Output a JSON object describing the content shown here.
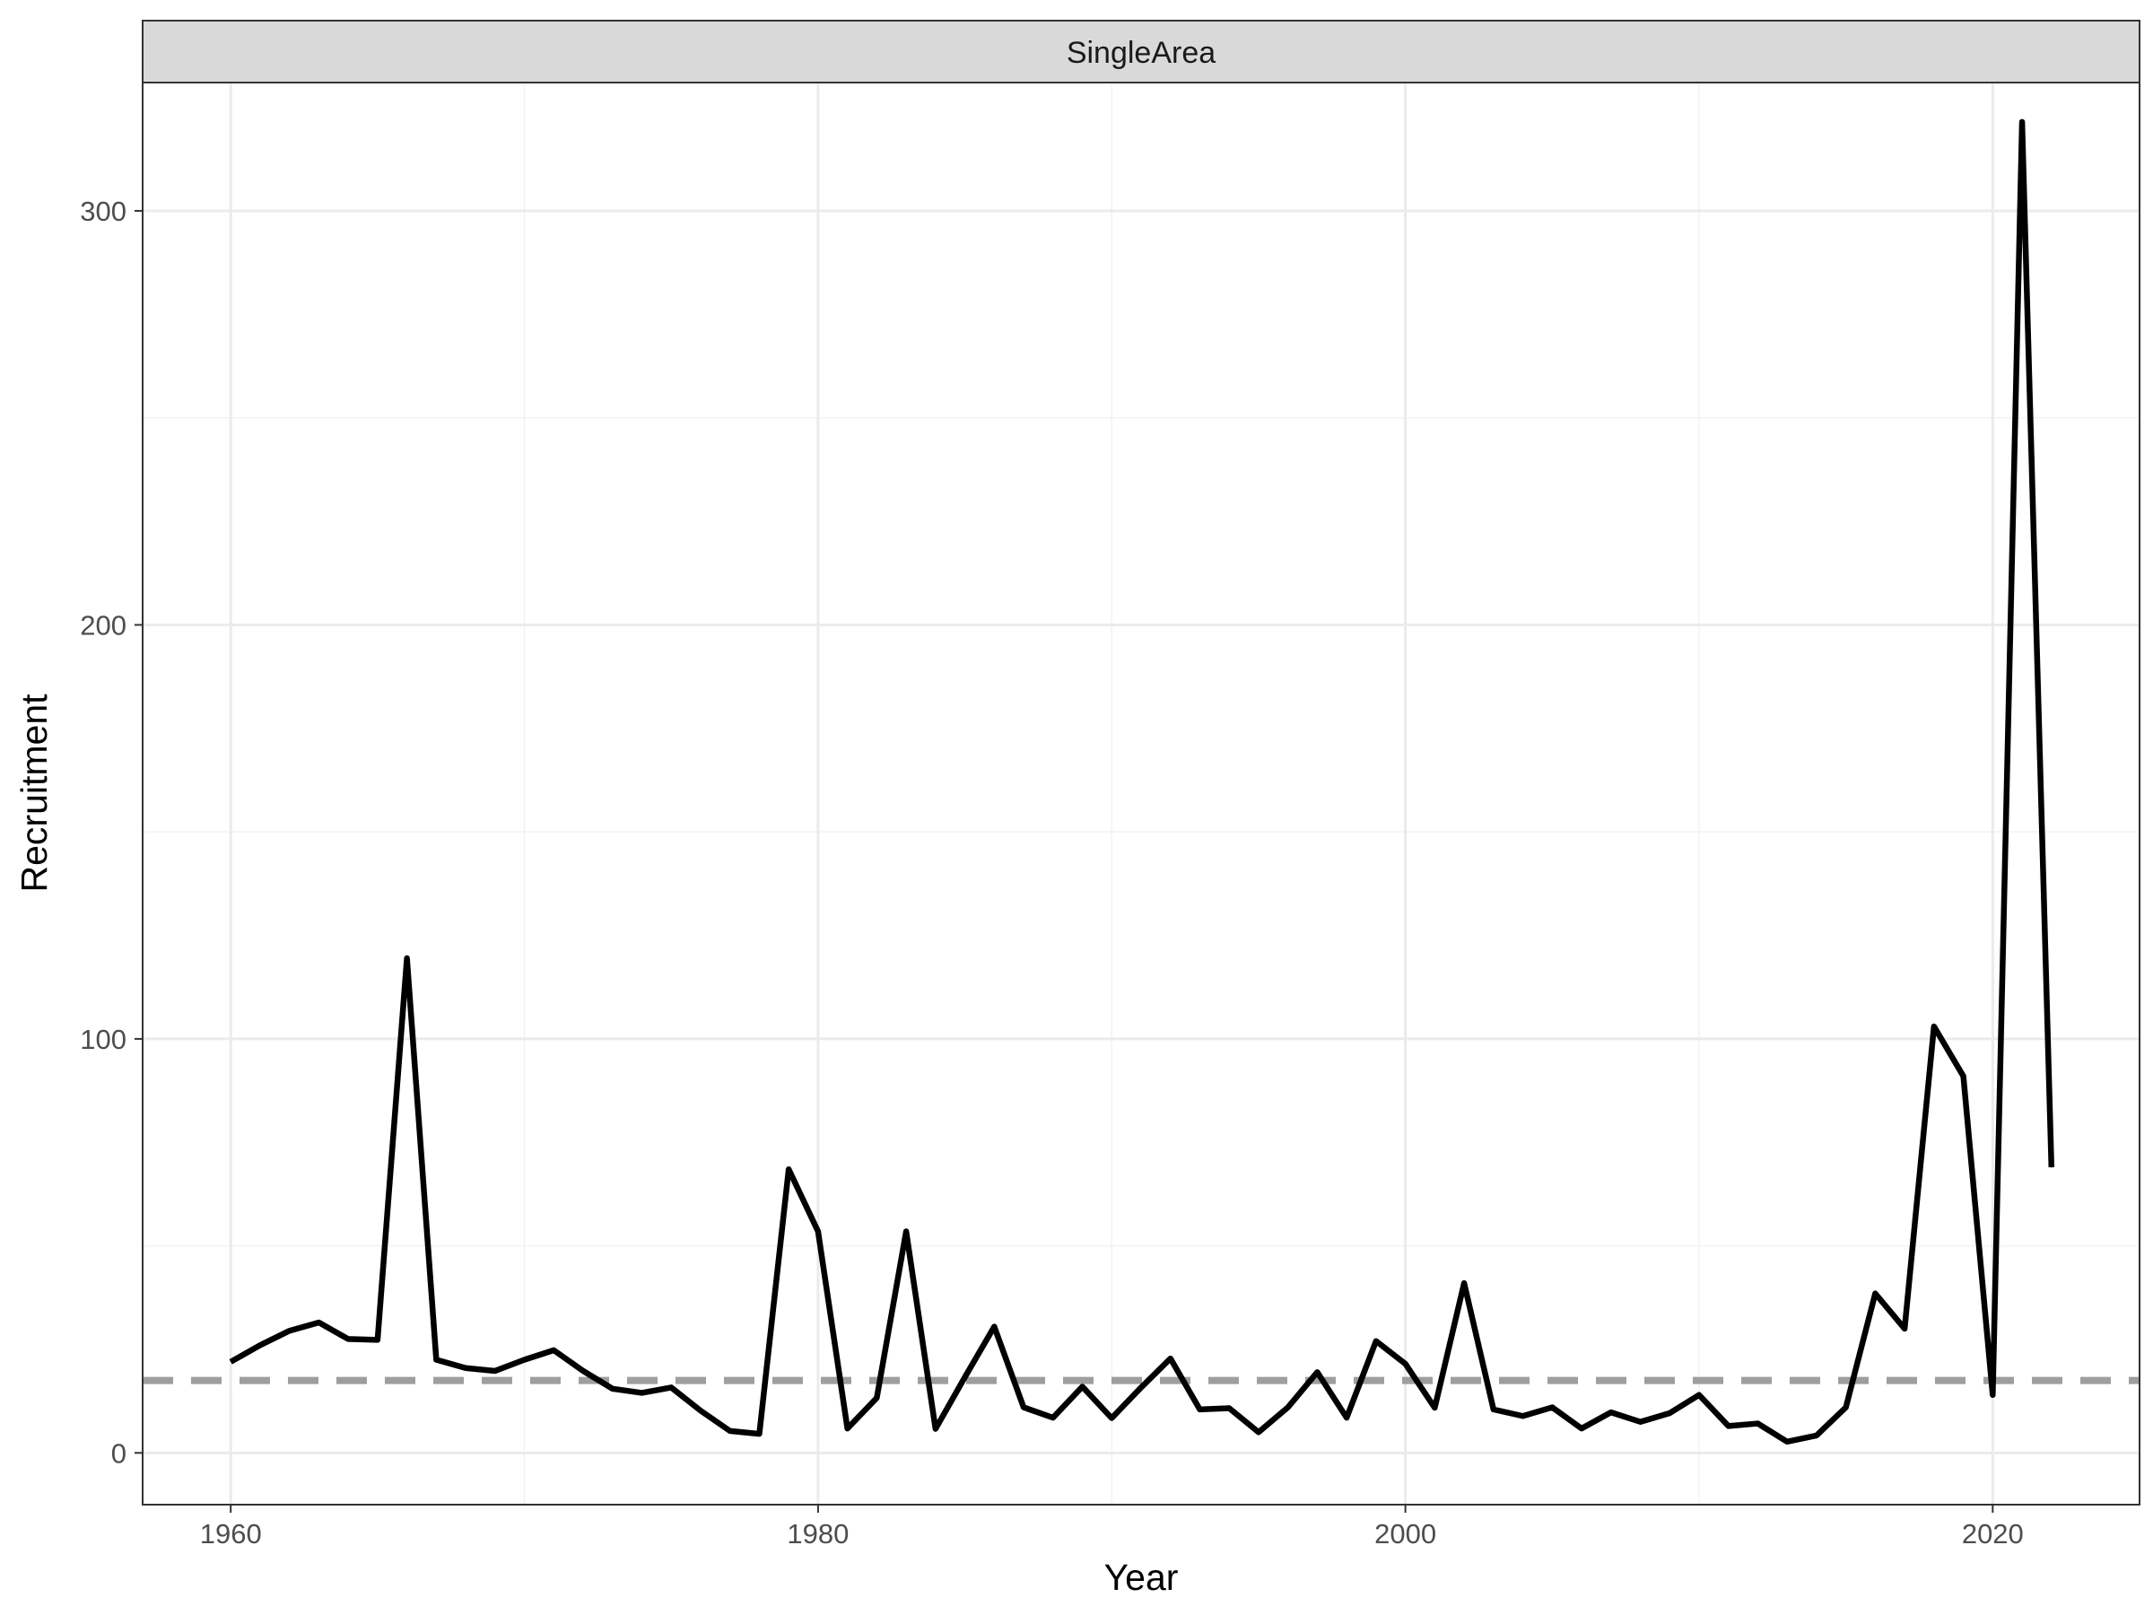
{
  "chart_data": {
    "type": "line",
    "facet_label": "SingleArea",
    "xlabel": "Year",
    "ylabel": "Recruitment",
    "xlim": [
      1957,
      2025
    ],
    "ylim": [
      -12.5,
      331
    ],
    "x_ticks": [
      1960,
      1980,
      2000,
      2020
    ],
    "x_tick_labels": [
      "1960",
      "1980",
      "2000",
      "2020"
    ],
    "y_ticks": [
      0,
      100,
      200,
      300
    ],
    "y_tick_labels": [
      "0",
      "100",
      "200",
      "300"
    ],
    "grid": true,
    "series": [
      {
        "color": "#000000",
        "style": "solid",
        "x": [
          1960,
          1961,
          1962,
          1963,
          1964,
          1965,
          1966,
          1967,
          1968,
          1969,
          1970,
          1971,
          1972,
          1973,
          1974,
          1975,
          1976,
          1977,
          1978,
          1979,
          1980,
          1981,
          1982,
          1983,
          1984,
          1985,
          1986,
          1987,
          1988,
          1989,
          1990,
          1991,
          1992,
          1993,
          1994,
          1995,
          1996,
          1997,
          1998,
          1999,
          2000,
          2001,
          2002,
          2003,
          2004,
          2005,
          2006,
          2007,
          2008,
          2009,
          2010,
          2011,
          2012,
          2013,
          2014,
          2015,
          2016,
          2017,
          2018,
          2019,
          2020,
          2021,
          2022
        ],
        "values": [
          22,
          26,
          29.5,
          31.5,
          27.5,
          27.3,
          119.5,
          22.5,
          20.5,
          19.8,
          22.5,
          24.8,
          19.8,
          15.5,
          14.5,
          15.8,
          10.2,
          5.3,
          4.6,
          68.5,
          53.5,
          5.9,
          13.3,
          53.5,
          5.8,
          18.3,
          30.5,
          11,
          8.5,
          16,
          8.4,
          15.8,
          22.8,
          10.5,
          10.8,
          5,
          11,
          19.5,
          8.5,
          27,
          21.5,
          10.9,
          41,
          10.5,
          8.9,
          11,
          5.9,
          9.8,
          7.5,
          9.6,
          14,
          6.5,
          7.1,
          2.7,
          4.2,
          11,
          38.5,
          30,
          103,
          91,
          14,
          321.5,
          69
        ]
      }
    ],
    "reference_line": {
      "value": 17.5,
      "color": "#9e9e9e",
      "style": "dashed"
    }
  }
}
